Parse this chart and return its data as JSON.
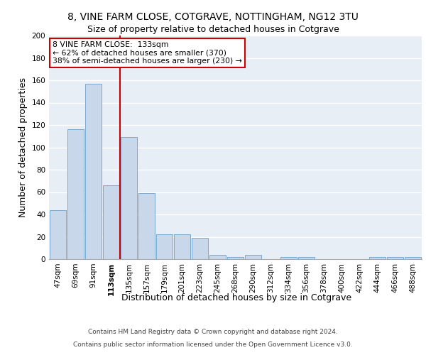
{
  "title1": "8, VINE FARM CLOSE, COTGRAVE, NOTTINGHAM, NG12 3TU",
  "title2": "Size of property relative to detached houses in Cotgrave",
  "xlabel": "Distribution of detached houses by size in Cotgrave",
  "ylabel": "Number of detached properties",
  "categories": [
    "47sqm",
    "69sqm",
    "91sqm",
    "113sqm",
    "135sqm",
    "157sqm",
    "179sqm",
    "201sqm",
    "223sqm",
    "245sqm",
    "268sqm",
    "290sqm",
    "312sqm",
    "334sqm",
    "356sqm",
    "378sqm",
    "400sqm",
    "422sqm",
    "444sqm",
    "466sqm",
    "488sqm"
  ],
  "values": [
    44,
    116,
    157,
    66,
    109,
    59,
    22,
    22,
    19,
    4,
    2,
    4,
    0,
    2,
    2,
    0,
    0,
    0,
    2,
    2,
    2
  ],
  "bar_color": "#c8d8ea",
  "bar_edge_color": "#7aaace",
  "red_line_x": 3.5,
  "annotation_text": "8 VINE FARM CLOSE:  133sqm\n← 62% of detached houses are smaller (370)\n38% of semi-detached houses are larger (230) →",
  "annotation_box_color": "#ffffff",
  "annotation_box_edge": "#cc0000",
  "footnote1": "Contains HM Land Registry data © Crown copyright and database right 2024.",
  "footnote2": "Contains public sector information licensed under the Open Government Licence v3.0.",
  "ylim": [
    0,
    200
  ],
  "yticks": [
    0,
    20,
    40,
    60,
    80,
    100,
    120,
    140,
    160,
    180,
    200
  ],
  "background_color": "#e8eef5",
  "grid_color": "#ffffff",
  "title1_fontsize": 10,
  "title2_fontsize": 9,
  "tick_fontsize": 7.5,
  "ylabel_fontsize": 9,
  "xlabel_fontsize": 9,
  "footnote_fontsize": 6.5
}
